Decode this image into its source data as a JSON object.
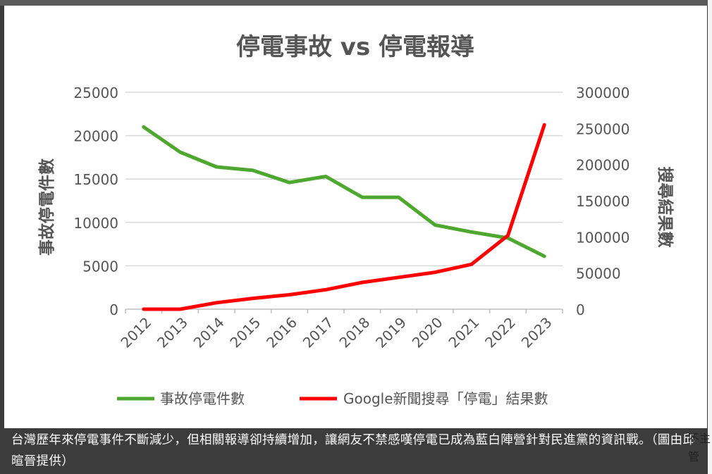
{
  "caption": "台灣歷年來停電事件不斷減少，但相關報導卻持續增加，讓網友不禁感嘆停電已成為藍白陣營針對民進黨的資訊戰。（圖由邱暄晉提供）",
  "side_text": "不主管",
  "chart_data": {
    "type": "line",
    "title": "停電事故 vs 停電報導",
    "categories": [
      "2012",
      "2013",
      "2014",
      "2015",
      "2016",
      "2017",
      "2018",
      "2019",
      "2020",
      "2021",
      "2022",
      "2023"
    ],
    "ylabel_left": "事故停電件數",
    "ylabel_right": "搜尋結果數",
    "ylim_left": [
      0,
      25000
    ],
    "ylim_right": [
      0,
      300000
    ],
    "yticks_left": [
      "0",
      "5000",
      "10000",
      "15000",
      "20000",
      "25000"
    ],
    "yticks_right": [
      "0",
      "50000",
      "100000",
      "150000",
      "200000",
      "250000",
      "300000"
    ],
    "grid": true,
    "legend_position": "bottom",
    "series": [
      {
        "name": "事故停電件數",
        "axis": "left",
        "color": "#4ea72e",
        "values": [
          21000,
          18100,
          16400,
          16000,
          14600,
          15300,
          12900,
          12900,
          9700,
          8900,
          8200,
          6100
        ]
      },
      {
        "name": "Google新聞搜尋「停電」結果數",
        "axis": "right",
        "color": "#ff0000",
        "values": [
          0,
          0,
          9000,
          15000,
          20000,
          27000,
          37000,
          44000,
          51000,
          62000,
          102000,
          255000
        ]
      }
    ]
  }
}
